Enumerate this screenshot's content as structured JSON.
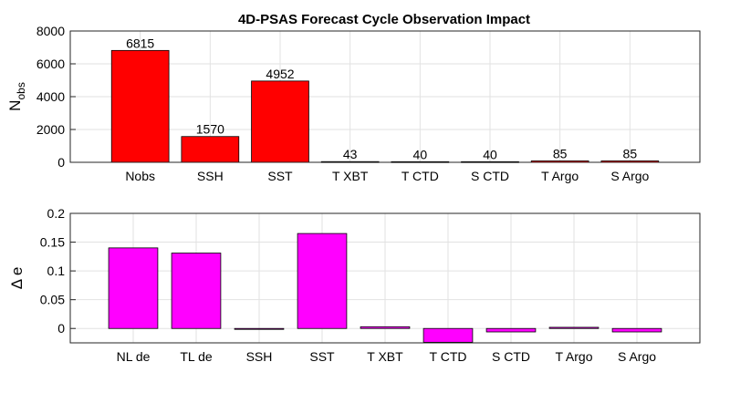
{
  "chart_data": [
    {
      "type": "bar",
      "title": "4D-PSAS Forecast Cycle Observation Impact",
      "ylabel_main": "N",
      "ylabel_sub": "obs",
      "xlabel": "",
      "categories": [
        "Nobs",
        "SSH",
        "SST",
        "T XBT",
        "T CTD",
        "S CTD",
        "T Argo",
        "S Argo"
      ],
      "values": [
        6815,
        1570,
        4952,
        43,
        40,
        40,
        85,
        85
      ],
      "data_labels": [
        "6815",
        "1570",
        "4952",
        "43",
        "40",
        "40",
        "85",
        "85"
      ],
      "ylim": [
        0,
        8000
      ],
      "yticks": [
        0,
        2000,
        4000,
        6000,
        8000
      ],
      "ytick_labels": [
        "0",
        "2000",
        "4000",
        "6000",
        "8000"
      ],
      "grid": true,
      "color": "#ff0000"
    },
    {
      "type": "bar",
      "title": "",
      "ylabel": "Δ e",
      "xlabel": "",
      "categories": [
        "NL de",
        "TL de",
        "SSH",
        "SST",
        "T XBT",
        "T CTD",
        "S CTD",
        "T Argo",
        "S Argo"
      ],
      "values": [
        0.14,
        0.131,
        -0.001,
        0.165,
        0.003,
        -0.024,
        -0.006,
        0.002,
        -0.006
      ],
      "ylim": [
        -0.025,
        0.2
      ],
      "yticks": [
        0,
        0.05,
        0.1,
        0.15,
        0.2
      ],
      "ytick_labels": [
        "0",
        "0.05",
        "0.1",
        "0.15",
        "0.2"
      ],
      "grid": true,
      "color": "#ff00ff"
    }
  ]
}
